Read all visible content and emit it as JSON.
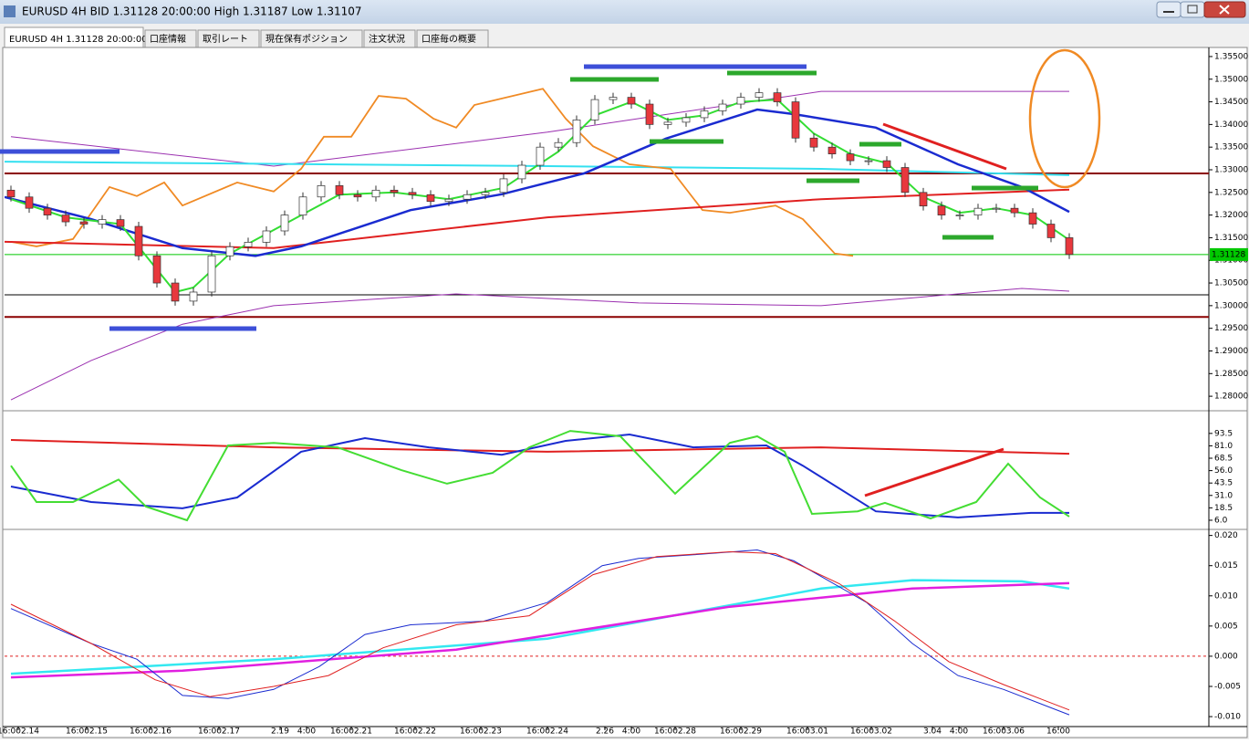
{
  "window": {
    "title": "EURUSD 4H BID 1.31128 20:00:00 High 1.31187 Low 1.31107"
  },
  "tabs": [
    "EURUSD 4H 1.31128 20:00:00",
    "口座情報",
    "取引レート",
    "現在保有ポジション",
    "注文状況",
    "口座毎の概要"
  ],
  "chart_data": [
    {
      "type": "candlestick",
      "up_color": "#ffffff",
      "down_color": "#e8383d",
      "xlim": [
        -0.35,
        65.65
      ],
      "ylim": [
        1.2772,
        1.3566
      ],
      "yticks": [
        {
          "value": 1.355,
          "label": "1.35500"
        },
        {
          "value": 1.35,
          "label": "1.35000"
        },
        {
          "value": 1.345,
          "label": "1.34500"
        },
        {
          "value": 1.34,
          "label": "1.34000"
        },
        {
          "value": 1.335,
          "label": "1.33500"
        },
        {
          "value": 1.33,
          "label": "1.33000"
        },
        {
          "value": 1.325,
          "label": "1.32500"
        },
        {
          "value": 1.32,
          "label": "1.32000"
        },
        {
          "value": 1.315,
          "label": "1.31500"
        },
        {
          "value": 1.31,
          "label": "1.31000"
        },
        {
          "value": 1.305,
          "label": "1.30500"
        },
        {
          "value": 1.3,
          "label": "1.30000"
        },
        {
          "value": 1.295,
          "label": "1.29500"
        },
        {
          "value": 1.29,
          "label": "1.29000"
        },
        {
          "value": 1.285,
          "label": "1.28500"
        },
        {
          "value": 1.28,
          "label": "1.28000"
        }
      ],
      "x": [
        0,
        1,
        2,
        3,
        4,
        5,
        6,
        7,
        8,
        9,
        10,
        11,
        12,
        13,
        14,
        15,
        16,
        17,
        18,
        19,
        20,
        21,
        22,
        23,
        24,
        25,
        26,
        27,
        28,
        29,
        30,
        31,
        32,
        33,
        34,
        35,
        36,
        37,
        38,
        39,
        40,
        41,
        42,
        43,
        44,
        45,
        46,
        47,
        48,
        49,
        50,
        51,
        52,
        53,
        54,
        55,
        56,
        57,
        58
      ],
      "open": [
        1.3255,
        1.324,
        1.3215,
        1.32,
        1.3185,
        1.318,
        1.319,
        1.3175,
        1.311,
        1.305,
        1.301,
        1.303,
        1.311,
        1.313,
        1.314,
        1.3165,
        1.32,
        1.324,
        1.3265,
        1.3245,
        1.324,
        1.3255,
        1.325,
        1.3245,
        1.323,
        1.3235,
        1.3245,
        1.325,
        1.328,
        1.331,
        1.335,
        1.336,
        1.341,
        1.3455,
        1.346,
        1.3445,
        1.34,
        1.3405,
        1.3415,
        1.343,
        1.3445,
        1.346,
        1.347,
        1.345,
        1.337,
        1.335,
        1.3335,
        1.332,
        1.332,
        1.3305,
        1.325,
        1.322,
        1.32,
        1.32,
        1.3215,
        1.3215,
        1.3205,
        1.318,
        1.315
      ],
      "high": [
        1.3265,
        1.325,
        1.3225,
        1.321,
        1.3195,
        1.32,
        1.32,
        1.3185,
        1.312,
        1.306,
        1.304,
        1.312,
        1.314,
        1.315,
        1.3175,
        1.321,
        1.325,
        1.3275,
        1.3275,
        1.3255,
        1.3265,
        1.3265,
        1.326,
        1.3255,
        1.3245,
        1.3255,
        1.326,
        1.329,
        1.332,
        1.336,
        1.337,
        1.342,
        1.3465,
        1.347,
        1.347,
        1.3455,
        1.3415,
        1.3425,
        1.344,
        1.3455,
        1.347,
        1.348,
        1.348,
        1.346,
        1.338,
        1.336,
        1.3345,
        1.333,
        1.333,
        1.3315,
        1.326,
        1.323,
        1.321,
        1.3225,
        1.3225,
        1.3225,
        1.3215,
        1.319,
        1.316
      ],
      "low": [
        1.323,
        1.3205,
        1.319,
        1.3175,
        1.317,
        1.317,
        1.3165,
        1.31,
        1.304,
        1.3,
        1.3,
        1.302,
        1.31,
        1.312,
        1.313,
        1.3155,
        1.319,
        1.323,
        1.3235,
        1.323,
        1.323,
        1.324,
        1.3235,
        1.322,
        1.322,
        1.3225,
        1.3235,
        1.324,
        1.327,
        1.33,
        1.334,
        1.335,
        1.34,
        1.3445,
        1.3435,
        1.339,
        1.339,
        1.3395,
        1.3405,
        1.342,
        1.3435,
        1.345,
        1.344,
        1.336,
        1.334,
        1.3325,
        1.331,
        1.331,
        1.3295,
        1.324,
        1.321,
        1.319,
        1.319,
        1.319,
        1.3205,
        1.3195,
        1.317,
        1.314,
        1.3103
      ],
      "close": [
        1.324,
        1.3215,
        1.32,
        1.3185,
        1.318,
        1.319,
        1.3175,
        1.311,
        1.305,
        1.301,
        1.303,
        1.311,
        1.313,
        1.314,
        1.3165,
        1.32,
        1.324,
        1.3265,
        1.3245,
        1.324,
        1.3255,
        1.325,
        1.3245,
        1.323,
        1.3235,
        1.3245,
        1.325,
        1.328,
        1.331,
        1.335,
        1.336,
        1.341,
        1.3455,
        1.346,
        1.3445,
        1.34,
        1.3405,
        1.3415,
        1.343,
        1.3445,
        1.346,
        1.347,
        1.345,
        1.337,
        1.335,
        1.3335,
        1.332,
        1.332,
        1.3305,
        1.325,
        1.322,
        1.32,
        1.32,
        1.3215,
        1.3215,
        1.3205,
        1.318,
        1.315,
        1.3113
      ],
      "hlines": [
        {
          "value": 1.3292,
          "color": "#8b0000"
        },
        {
          "value": 1.2975,
          "color": "#8b0000"
        },
        {
          "value": 1.3024,
          "color": "#000000"
        },
        {
          "value": 1.31128,
          "color": "#00c800",
          "price_tag": true
        }
      ],
      "series": [
        {
          "color": "#9b30b0",
          "x": [
            0,
            14.4,
            29.4,
            44.4,
            58
          ],
          "values": [
            1.3373,
            1.3308,
            1.3383,
            1.3473,
            1.3473
          ]
        },
        {
          "color": "#9b30b0",
          "x": [
            0,
            4.4,
            9.4,
            14.4,
            24.4,
            34.4,
            44.4,
            55.4,
            58
          ],
          "values": [
            1.2792,
            1.2879,
            1.2959,
            1.3,
            1.3026,
            1.3006,
            1.3,
            1.3038,
            1.3032
          ]
        },
        {
          "color": "#33e0f0",
          "x": [
            -0.35,
            29.4,
            44.4,
            58
          ],
          "values": [
            1.3318,
            1.3308,
            1.3302,
            1.3288
          ]
        },
        {
          "color": "#f08a24",
          "x": [
            0,
            1.4,
            3.4,
            5.4,
            6.9,
            8.4,
            9.4,
            12.4,
            14.4,
            15.9,
            17.15,
            18.65,
            20.15,
            21.65,
            23.15,
            24.4,
            25.4,
            29.15,
            30.4,
            31.9,
            33.9,
            36.15,
            37.9,
            39.4,
            41.9,
            43.4,
            45.15,
            46.15
          ],
          "values": [
            1.3141,
            1.3131,
            1.3147,
            1.3262,
            1.3242,
            1.3272,
            1.3221,
            1.3272,
            1.3252,
            1.3302,
            1.3373,
            1.3373,
            1.3463,
            1.3457,
            1.3413,
            1.3393,
            1.3443,
            1.3479,
            1.3413,
            1.3352,
            1.3312,
            1.3302,
            1.3211,
            1.3205,
            1.3221,
            1.3191,
            1.3115,
            1.311
          ]
        },
        {
          "color": "#e02020",
          "x": [
            -0.35,
            14.4,
            29.4,
            44.4,
            58
          ],
          "values": [
            1.3141,
            1.3127,
            1.3195,
            1.3235,
            1.3256
          ]
        },
        {
          "color": "#1a2bd0",
          "x": [
            -0.35,
            4.4,
            9.4,
            13.4,
            15.9,
            21.9,
            26.9,
            31.4,
            35.9,
            40.9,
            42.9,
            47.4,
            51.9,
            55.4,
            58
          ],
          "values": [
            1.324,
            1.3191,
            1.3127,
            1.311,
            1.3131,
            1.3211,
            1.3246,
            1.3292,
            1.3369,
            1.3433,
            1.3423,
            1.3393,
            1.3312,
            1.3262,
            1.3207
          ]
        },
        {
          "color": "#33dd33",
          "x": [
            0,
            3,
            6,
            9,
            10,
            12,
            15,
            18,
            21,
            24,
            27,
            30,
            32,
            34,
            36,
            38,
            40,
            42,
            44,
            46,
            48,
            50,
            52,
            54,
            56,
            58
          ],
          "values": [
            1.3235,
            1.3195,
            1.318,
            1.303,
            1.304,
            1.3115,
            1.318,
            1.3245,
            1.325,
            1.3235,
            1.326,
            1.334,
            1.342,
            1.345,
            1.341,
            1.342,
            1.345,
            1.3455,
            1.338,
            1.3335,
            1.3315,
            1.324,
            1.3205,
            1.3215,
            1.32,
            1.3145
          ]
        }
      ]
    },
    {
      "type": "line",
      "xlim": [
        -0.35,
        65.65
      ],
      "ylim": [
        -1.4,
        114.5
      ],
      "yticks": [
        93.5,
        {
          "value": 81,
          "label": "81.0"
        },
        68.5,
        {
          "value": 56,
          "label": "56.0"
        },
        43.5,
        {
          "value": 31,
          "label": "31.0"
        },
        18.5,
        {
          "value": 6,
          "label": "6.0"
        }
      ],
      "series": [
        {
          "color": "#e02020",
          "x": [
            0,
            14.4,
            29.4,
            44.4,
            58
          ],
          "values": [
            86.9,
            79.5,
            75,
            79.5,
            73
          ]
        },
        {
          "color": "#1a2bd0",
          "x": [
            0,
            4.4,
            9.4,
            12.4,
            15.9,
            19.4,
            22.9,
            26.9,
            30.4,
            33.9,
            37.4,
            41.4,
            43.4,
            47.4,
            51.9,
            55.9,
            58
          ],
          "values": [
            40,
            24.4,
            18,
            29,
            75,
            88.7,
            79.5,
            72,
            86,
            92.4,
            79.5,
            81.4,
            61,
            15,
            8.8,
            13.4,
            13.4
          ]
        },
        {
          "color": "#44dd33",
          "x": [
            0,
            1.4,
            3.4,
            5.9,
            7.4,
            9.65,
            11.9,
            14.4,
            17.9,
            21.4,
            23.9,
            26.4,
            28.4,
            30.65,
            33.4,
            36.4,
            39.4,
            40.9,
            42.4,
            43.9,
            46.4,
            47.9,
            50.4,
            52.9,
            54.65,
            56.4,
            58
          ],
          "values": [
            61,
            24.4,
            24.4,
            47,
            19.8,
            6,
            81.4,
            84,
            79.5,
            56.5,
            42.8,
            53.8,
            79.5,
            96,
            90.6,
            32.7,
            84,
            90.6,
            75,
            12.4,
            15,
            23.5,
            7.8,
            24.4,
            63,
            29,
            9.7
          ]
        }
      ]
    },
    {
      "type": "line",
      "xlim": [
        -0.35,
        65.65
      ],
      "ylim": [
        -0.0115,
        0.0207
      ],
      "yticks": [
        {
          "value": 0.02,
          "label": "0.020"
        },
        0.015,
        {
          "value": 0.01,
          "label": "0.010"
        },
        0.005,
        {
          "value": 0,
          "label": "0.000"
        },
        -0.005,
        {
          "value": -0.01,
          "label": "-0.010"
        }
      ],
      "xticks": [
        {
          "value": 0.4,
          "label": "16:002.14"
        },
        {
          "value": 4.15,
          "label": "16:002.15"
        },
        {
          "value": 7.65,
          "label": "16:002.16"
        },
        {
          "value": 11.4,
          "label": "16:002.17"
        },
        {
          "value": 14.75,
          "label": "2.19"
        },
        {
          "value": 16.2,
          "label": "4:00"
        },
        {
          "value": 18.65,
          "label": "16:002.21"
        },
        {
          "value": 22.15,
          "label": "16:002.22"
        },
        {
          "value": 25.75,
          "label": "16:002.23"
        },
        {
          "value": 29.4,
          "label": "16:002.24"
        },
        {
          "value": 32.55,
          "label": "2.26"
        },
        {
          "value": 34,
          "label": "4:00"
        },
        {
          "value": 36.4,
          "label": "16:002.28"
        },
        {
          "value": 40,
          "label": "16:002.29"
        },
        {
          "value": 43.65,
          "label": "16:003.01"
        },
        {
          "value": 47.15,
          "label": "16:003.02"
        },
        {
          "value": 50.5,
          "label": "3.04"
        },
        {
          "value": 51.95,
          "label": "4:00"
        },
        {
          "value": 54.4,
          "label": "16:003.06"
        },
        {
          "value": 57.4,
          "label": "16:00"
        }
      ],
      "series": [
        {
          "color": "#33e8f0",
          "x": [
            0,
            14.4,
            29.4,
            44.4,
            49.4,
            55.4,
            58
          ],
          "values": [
            -0.0029,
            -0.0005,
            0.0029,
            0.0112,
            0.0126,
            0.0124,
            0.0112
          ]
        },
        {
          "color": "#e020e0",
          "x": [
            0,
            9.4,
            24.4,
            39.4,
            49.4,
            58
          ],
          "values": [
            -0.0035,
            -0.0024,
            0.0011,
            0.0082,
            0.0112,
            0.0121
          ]
        },
        {
          "color": "#1a2bd0",
          "x": [
            0,
            4.4,
            6.9,
            9.4,
            11.9,
            14.4,
            16.9,
            19.4,
            21.9,
            25.9,
            29.4,
            32.4,
            34.4,
            37.4,
            40.9,
            42.9,
            46.9,
            49.4,
            51.9,
            54.4,
            58
          ],
          "values": [
            0.0079,
            0.0021,
            -0.0005,
            -0.0065,
            -0.007,
            -0.0055,
            -0.0017,
            0.0036,
            0.0052,
            0.0058,
            0.0089,
            0.015,
            0.0162,
            0.0168,
            0.0176,
            0.0158,
            0.0089,
            0.0021,
            -0.0032,
            -0.0055,
            -0.0097
          ]
        },
        {
          "color": "#e02020",
          "x": [
            0,
            4.4,
            7.9,
            10.9,
            14.4,
            17.4,
            20.4,
            24.4,
            28.4,
            31.9,
            35.4,
            39.4,
            41.9,
            45.4,
            48.4,
            51.4,
            54.4,
            58
          ],
          "values": [
            0.0086,
            0.0021,
            -0.0039,
            -0.0067,
            -0.005,
            -0.0032,
            0.0014,
            0.0052,
            0.0067,
            0.0135,
            0.0165,
            0.0173,
            0.017,
            0.012,
            0.0059,
            -0.0009,
            -0.0047,
            -0.0089
          ]
        }
      ]
    }
  ]
}
